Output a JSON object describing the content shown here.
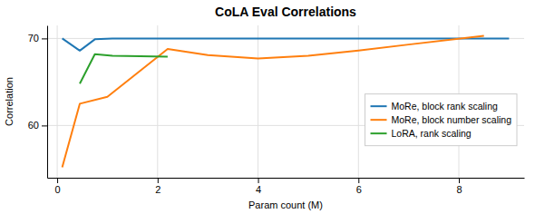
{
  "chart_data": {
    "type": "line",
    "title": "CoLA Eval Correlations",
    "xlabel": "Param count (M)",
    "ylabel": "Correlation",
    "series": [
      {
        "name": "MoRe, block rank scaling",
        "color": "#1f77b4",
        "x": [
          0.1,
          0.45,
          0.75,
          1.1,
          2.2,
          3.0,
          4.0,
          5.0,
          6.0,
          7.0,
          8.0,
          9.0
        ],
        "values": [
          70.0,
          68.6,
          69.9,
          70.0,
          70.0,
          70.0,
          70.0,
          70.0,
          70.0,
          70.0,
          70.0,
          70.0
        ]
      },
      {
        "name": "MoRe, block number scaling",
        "color": "#ff7f0e",
        "x": [
          0.1,
          0.45,
          1.0,
          2.2,
          3.0,
          4.0,
          5.0,
          6.0,
          7.0,
          8.5
        ],
        "values": [
          55.2,
          62.5,
          63.3,
          68.8,
          68.1,
          67.7,
          68.0,
          68.6,
          69.3,
          70.3
        ]
      },
      {
        "name": "LoRA, rank scaling",
        "color": "#2ca02c",
        "x": [
          0.45,
          0.75,
          1.1,
          2.2
        ],
        "values": [
          64.8,
          68.2,
          68.0,
          67.9
        ]
      }
    ],
    "xlim": [
      -0.2,
      9.3
    ],
    "ylim": [
      54.0,
      71.5
    ],
    "xticks": [
      0,
      2,
      4,
      6,
      8
    ],
    "yticks": [
      60,
      70
    ],
    "grid": true,
    "legend": "right"
  }
}
